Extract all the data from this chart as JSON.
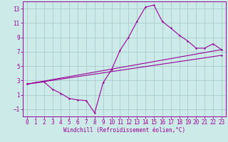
{
  "bg_color": "#cceae8",
  "grid_color": "#aacccc",
  "line_color": "#990099",
  "marker_color": "#990099",
  "xlabel": "Windchill (Refroidissement éolien,°C)",
  "xlim": [
    -0.5,
    23.5
  ],
  "ylim": [
    -2.0,
    14.0
  ],
  "xticks": [
    0,
    1,
    2,
    3,
    4,
    5,
    6,
    7,
    8,
    9,
    10,
    11,
    12,
    13,
    14,
    15,
    16,
    17,
    18,
    19,
    20,
    21,
    22,
    23
  ],
  "yticks": [
    -1,
    1,
    3,
    5,
    7,
    9,
    11,
    13
  ],
  "main_x": [
    0,
    1,
    2,
    3,
    4,
    5,
    6,
    7,
    8,
    9,
    10,
    11,
    12,
    13,
    14,
    15,
    16,
    17,
    18,
    19,
    20,
    21,
    22,
    23
  ],
  "main_y": [
    2.5,
    2.7,
    2.8,
    1.8,
    1.2,
    0.5,
    0.3,
    0.2,
    -1.5,
    2.7,
    4.5,
    7.2,
    9.0,
    11.2,
    13.2,
    13.5,
    11.2,
    10.3,
    9.3,
    8.5,
    7.5,
    7.5,
    8.1,
    7.3
  ],
  "line1_x": [
    0,
    23
  ],
  "line1_y": [
    2.5,
    7.3
  ],
  "line2_x": [
    0,
    23
  ],
  "line2_y": [
    2.5,
    6.5
  ],
  "axis_fontsize": 5.5,
  "tick_fontsize": 5.5,
  "xlabel_fontsize": 5.5
}
